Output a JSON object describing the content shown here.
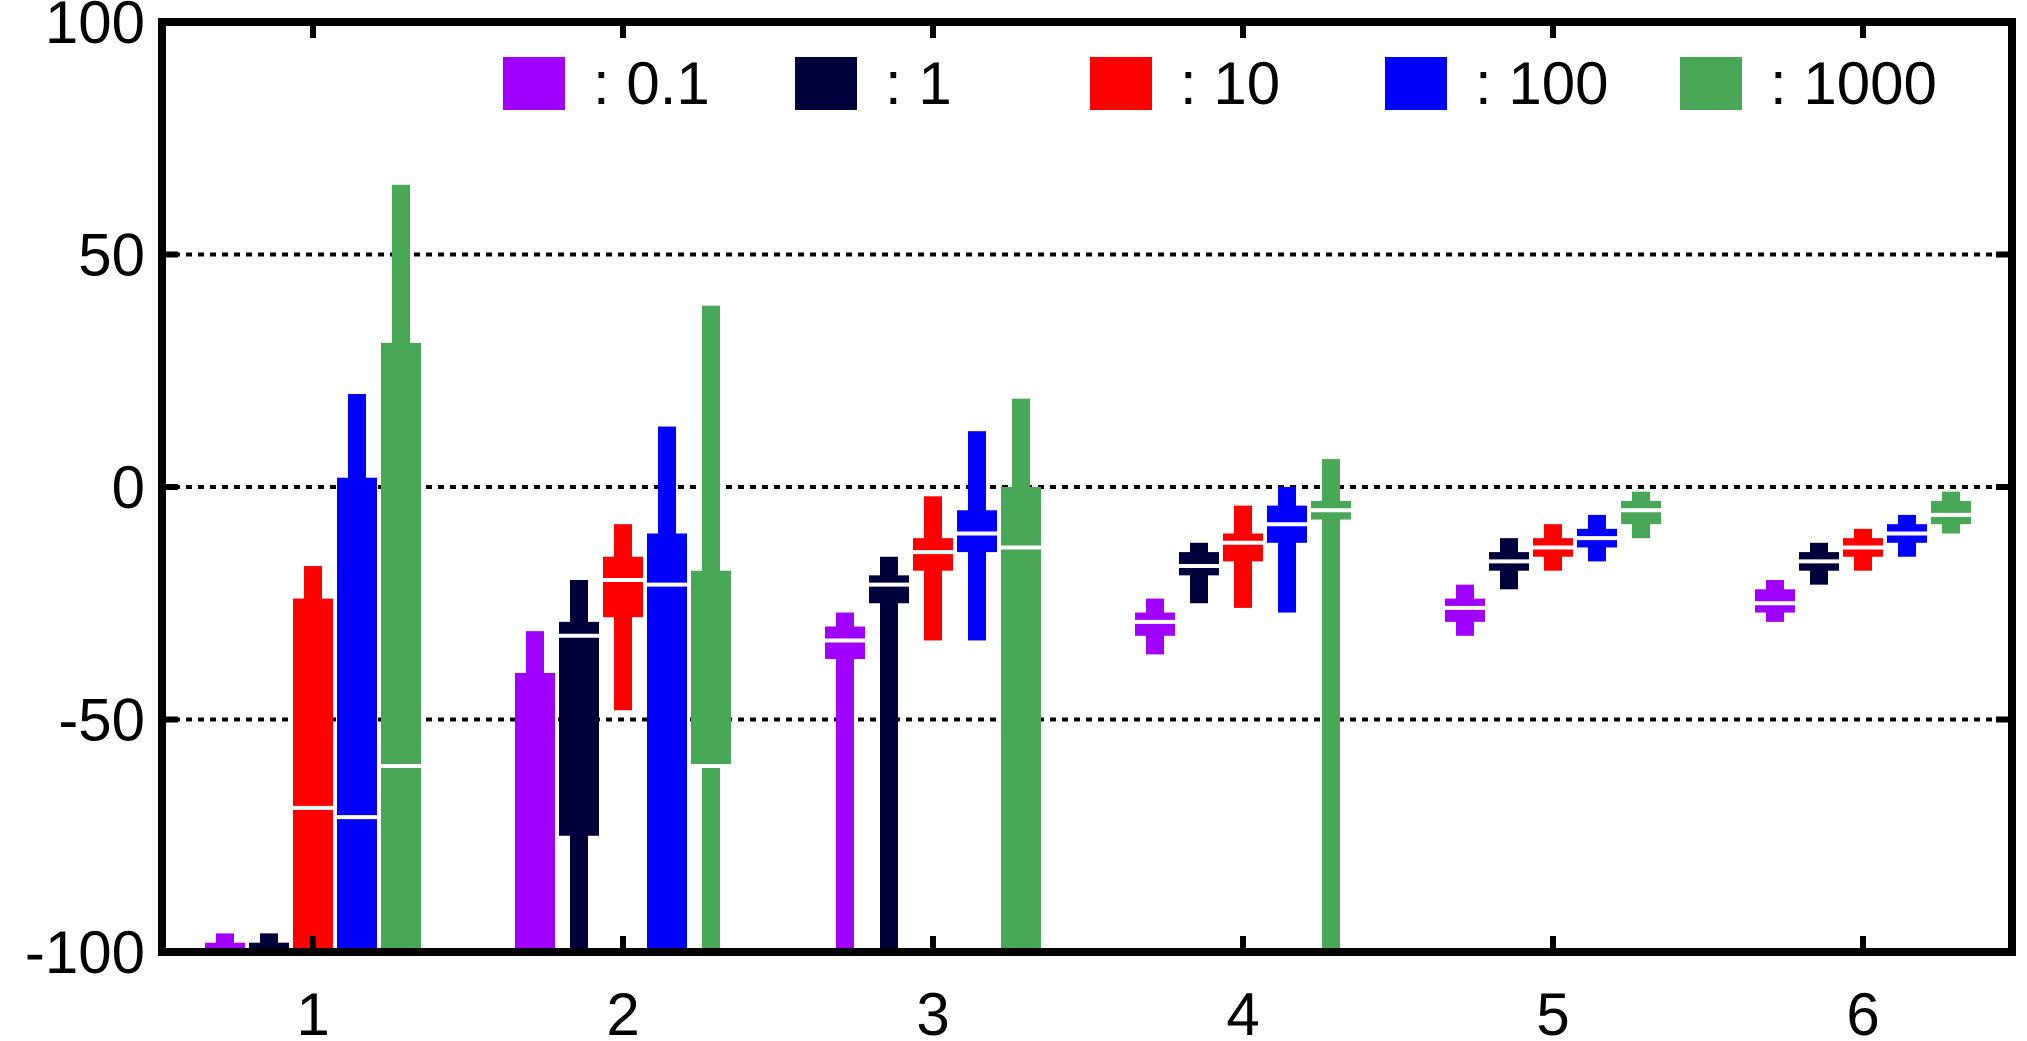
{
  "chart_data": {
    "type": "boxplot",
    "categories": [
      "1",
      "2",
      "3",
      "4",
      "5",
      "6"
    ],
    "ylim": [
      -100,
      100
    ],
    "yticks": [
      "100",
      "50",
      "0",
      "-50",
      "-100"
    ],
    "grid": "horizontal dotted lines at 50, 0, -50",
    "legend_position": "top",
    "series": [
      {
        "name": ": 0.1",
        "color": "#a000ff",
        "boxes": [
          {
            "whisker_low": -100,
            "q1": -100,
            "median": -100,
            "q3": -98,
            "whisker_high": -96
          },
          {
            "whisker_low": -100,
            "q1": -100,
            "median": -100,
            "q3": -40,
            "whisker_high": -31
          },
          {
            "whisker_low": -100,
            "q1": -37,
            "median": -33,
            "q3": -30,
            "whisker_high": -27
          },
          {
            "whisker_low": -36,
            "q1": -32,
            "median": -29,
            "q3": -27,
            "whisker_high": -24
          },
          {
            "whisker_low": -32,
            "q1": -29,
            "median": -26,
            "q3": -24,
            "whisker_high": -21
          },
          {
            "whisker_low": -29,
            "q1": -27,
            "median": -25,
            "q3": -22,
            "whisker_high": -20
          }
        ]
      },
      {
        "name": ": 1",
        "color": "#00003a",
        "boxes": [
          {
            "whisker_low": -100,
            "q1": -100,
            "median": -100,
            "q3": -98,
            "whisker_high": -96
          },
          {
            "whisker_low": -100,
            "q1": -75,
            "median": -32,
            "q3": -29,
            "whisker_high": -20
          },
          {
            "whisker_low": -100,
            "q1": -25,
            "median": -21,
            "q3": -19,
            "whisker_high": -15
          },
          {
            "whisker_low": -25,
            "q1": -19,
            "median": -17,
            "q3": -14,
            "whisker_high": -12
          },
          {
            "whisker_low": -22,
            "q1": -18,
            "median": -16,
            "q3": -14,
            "whisker_high": -11
          },
          {
            "whisker_low": -21,
            "q1": -18,
            "median": -16,
            "q3": -14,
            "whisker_high": -12
          }
        ]
      },
      {
        "name": ": 10",
        "color": "#ff0000",
        "boxes": [
          {
            "whisker_low": -100,
            "q1": -100,
            "median": -69,
            "q3": -24,
            "whisker_high": -17
          },
          {
            "whisker_low": -48,
            "q1": -28,
            "median": -20,
            "q3": -15,
            "whisker_high": -8
          },
          {
            "whisker_low": -33,
            "q1": -18,
            "median": -14,
            "q3": -11,
            "whisker_high": -2
          },
          {
            "whisker_low": -26,
            "q1": -16,
            "median": -12,
            "q3": -10,
            "whisker_high": -4
          },
          {
            "whisker_low": -18,
            "q1": -15,
            "median": -13,
            "q3": -11,
            "whisker_high": -8
          },
          {
            "whisker_low": -18,
            "q1": -15,
            "median": -13,
            "q3": -11,
            "whisker_high": -9
          }
        ]
      },
      {
        "name": ": 100",
        "color": "#0000ff",
        "boxes": [
          {
            "whisker_low": -100,
            "q1": -100,
            "median": -71,
            "q3": 2,
            "whisker_high": 20
          },
          {
            "whisker_low": -100,
            "q1": -100,
            "median": -21,
            "q3": -10,
            "whisker_high": 13
          },
          {
            "whisker_low": -33,
            "q1": -14,
            "median": -10,
            "q3": -5,
            "whisker_high": 12
          },
          {
            "whisker_low": -27,
            "q1": -12,
            "median": -8,
            "q3": -4,
            "whisker_high": 0
          },
          {
            "whisker_low": -16,
            "q1": -13,
            "median": -11,
            "q3": -9,
            "whisker_high": -6
          },
          {
            "whisker_low": -15,
            "q1": -12,
            "median": -10,
            "q3": -8,
            "whisker_high": -6
          }
        ]
      },
      {
        "name": ": 1000",
        "color": "#49a858",
        "boxes": [
          {
            "whisker_low": -100,
            "q1": -100,
            "median": -60,
            "q3": 31,
            "whisker_high": 65
          },
          {
            "whisker_low": -100,
            "q1": -60,
            "median": -60,
            "q3": -18,
            "whisker_high": 39
          },
          {
            "whisker_low": -100,
            "q1": -100,
            "median": -13,
            "q3": 0,
            "whisker_high": 19
          },
          {
            "whisker_low": -100,
            "q1": -7,
            "median": -5,
            "q3": -3,
            "whisker_high": 6
          },
          {
            "whisker_low": -11,
            "q1": -8,
            "median": -5,
            "q3": -3,
            "whisker_high": -1
          },
          {
            "whisker_low": -10,
            "q1": -8,
            "median": -6,
            "q3": -3,
            "whisker_high": -1
          }
        ]
      }
    ]
  }
}
